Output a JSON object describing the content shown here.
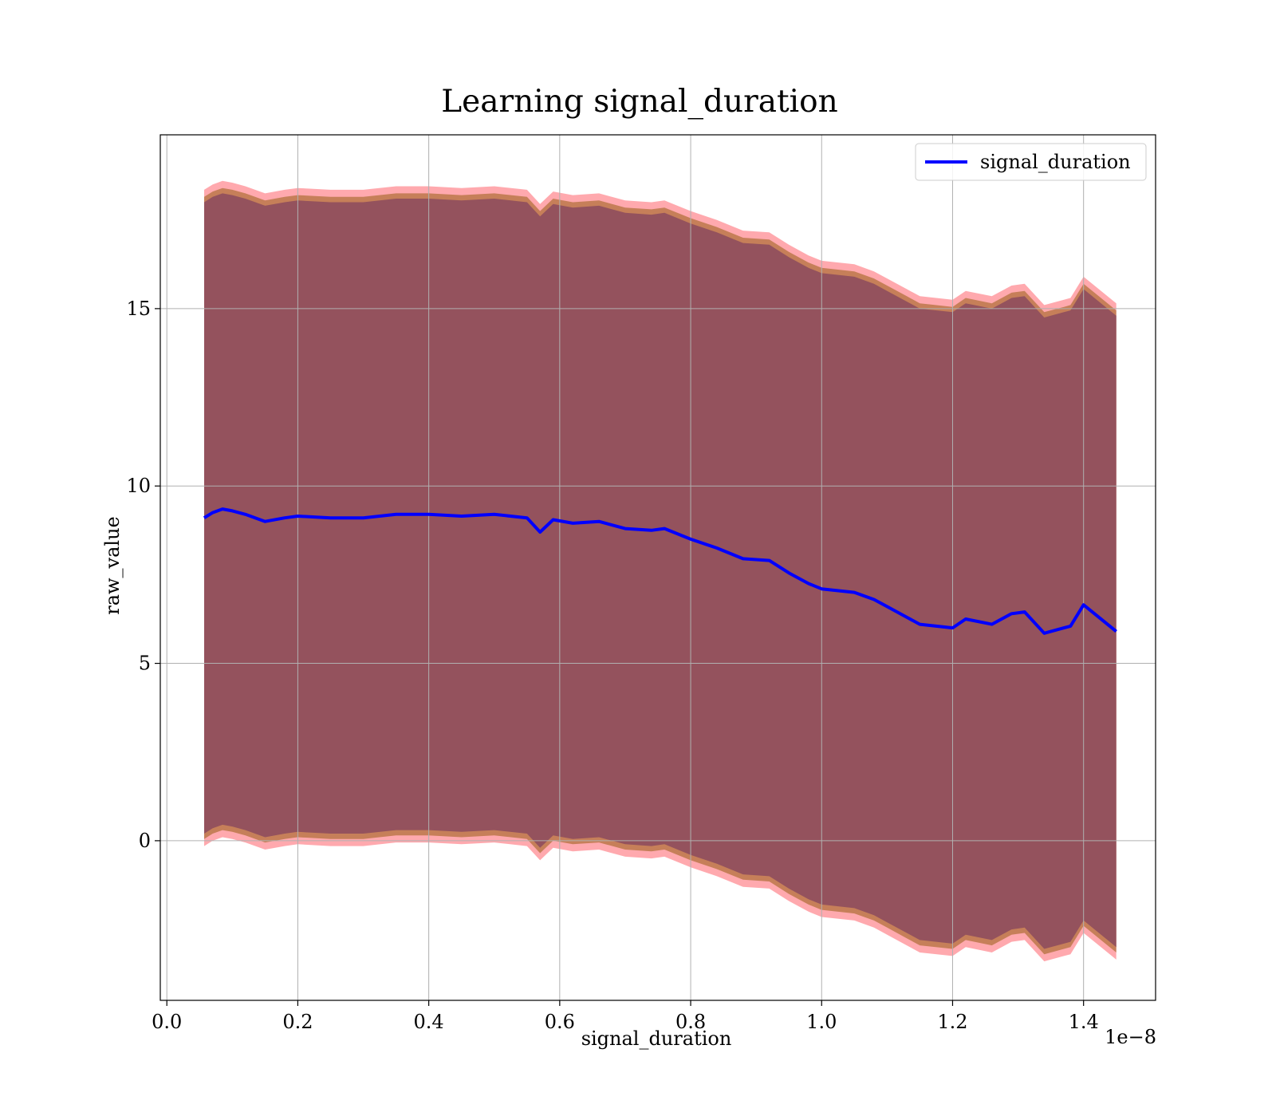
{
  "chart_data": {
    "type": "line",
    "title": "Learning signal_duration",
    "xlabel": "signal_duration",
    "ylabel": "raw_value",
    "x_offset_label": "1e−8",
    "xlim": [
      -0.01,
      1.51
    ],
    "ylim": [
      -4.5,
      19.9
    ],
    "x_ticks": [
      0.0,
      0.2,
      0.4,
      0.6,
      0.8,
      1.0,
      1.2,
      1.4
    ],
    "x_tick_labels": [
      "0.0",
      "0.2",
      "0.4",
      "0.6",
      "0.8",
      "1.0",
      "1.2",
      "1.4"
    ],
    "y_ticks": [
      0,
      5,
      10,
      15
    ],
    "y_tick_labels": [
      "0",
      "5",
      "10",
      "15"
    ],
    "grid": true,
    "legend_position": "top-right",
    "series": [
      {
        "name": "signal_duration",
        "color": "#0000ff",
        "x": [
          0.057,
          0.07,
          0.085,
          0.1,
          0.12,
          0.15,
          0.18,
          0.2,
          0.25,
          0.3,
          0.35,
          0.4,
          0.45,
          0.5,
          0.55,
          0.57,
          0.59,
          0.62,
          0.66,
          0.7,
          0.74,
          0.76,
          0.8,
          0.84,
          0.88,
          0.92,
          0.95,
          0.98,
          1.0,
          1.05,
          1.08,
          1.1,
          1.13,
          1.15,
          1.2,
          1.22,
          1.26,
          1.29,
          1.31,
          1.34,
          1.37,
          1.38,
          1.4,
          1.45
        ],
        "y": [
          9.1,
          9.25,
          9.35,
          9.3,
          9.2,
          9.0,
          9.1,
          9.15,
          9.1,
          9.1,
          9.2,
          9.2,
          9.15,
          9.2,
          9.1,
          8.7,
          9.05,
          8.95,
          9.0,
          8.8,
          8.75,
          8.8,
          8.5,
          8.25,
          7.95,
          7.9,
          7.55,
          7.25,
          7.1,
          7.0,
          6.8,
          6.6,
          6.3,
          6.1,
          6.0,
          6.25,
          6.1,
          6.4,
          6.45,
          5.85,
          6.0,
          6.05,
          6.65,
          5.9
        ]
      }
    ],
    "band_halfwidth_inner": 8.9,
    "band_halfwidth_mid": 9.05,
    "band_halfwidth_outer": 9.25,
    "colors": {
      "line": "#0000ff",
      "band_inner": "#8b4a5e",
      "band_mid": "#c07a50",
      "band_outer": "#ff9aa0",
      "grid": "#b0b0b0"
    }
  }
}
